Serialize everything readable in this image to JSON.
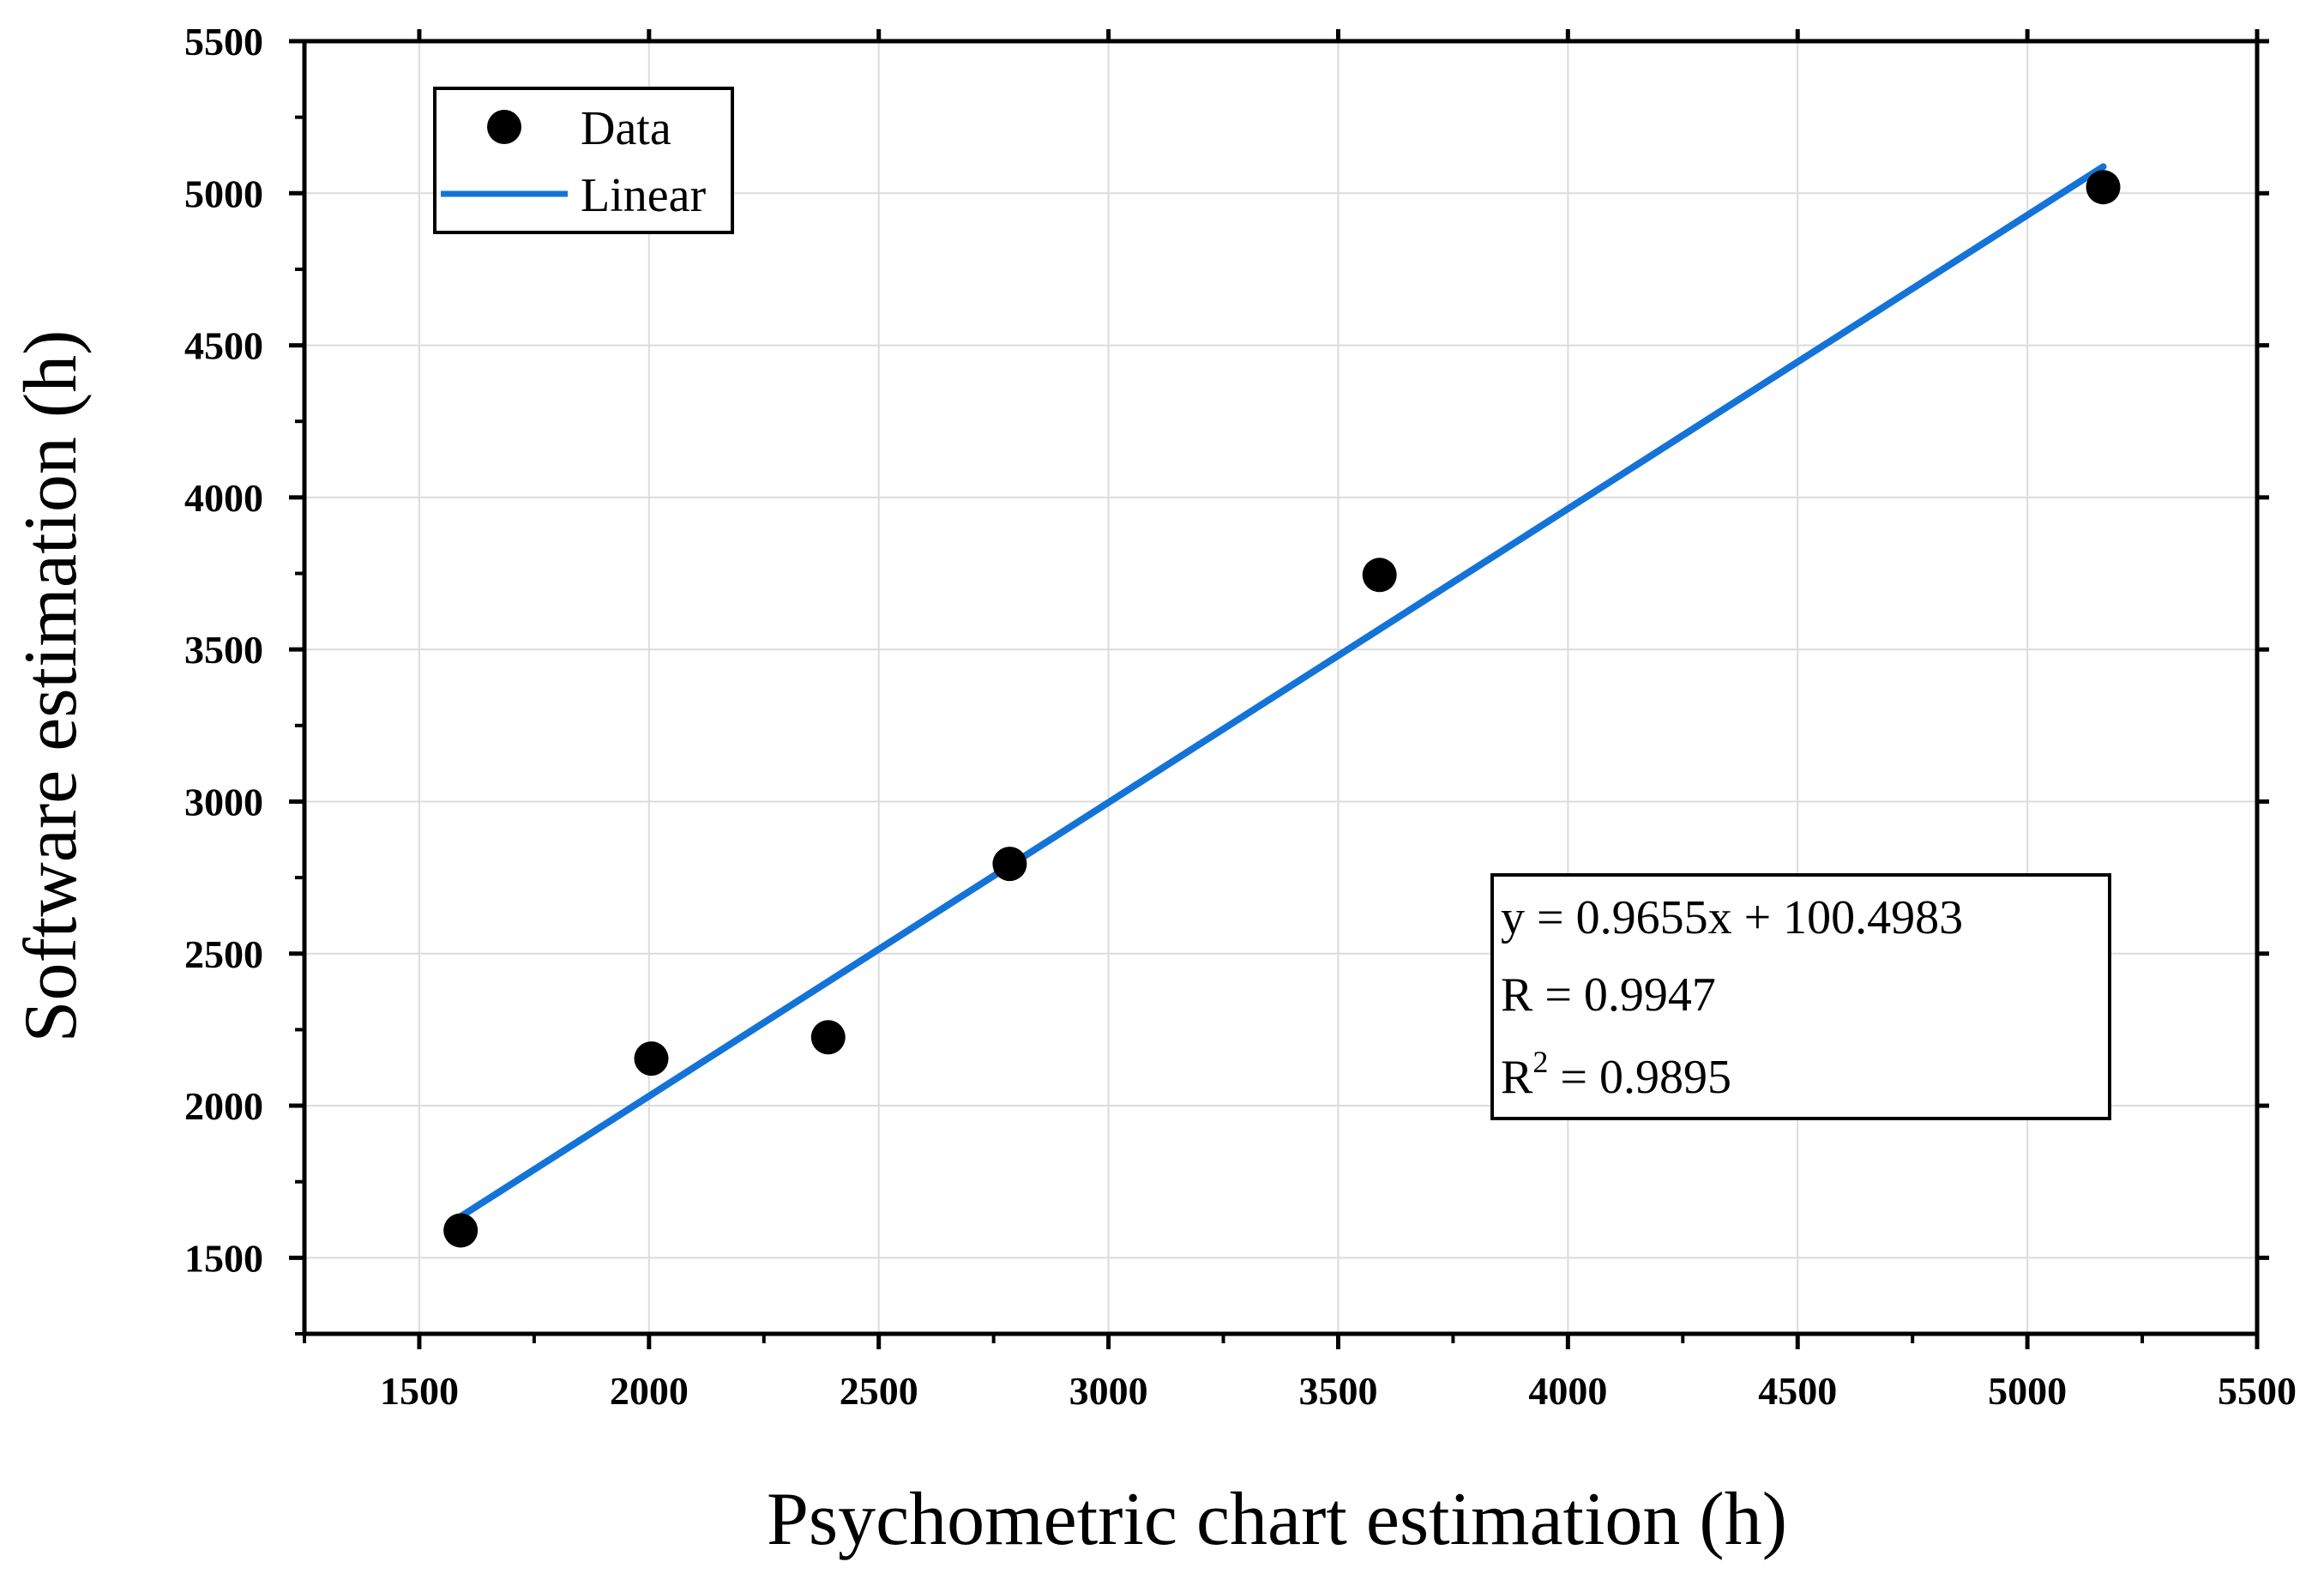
{
  "chart_data": {
    "type": "scatter",
    "title": "",
    "xlabel": "Psychometric chart estimation (h)",
    "ylabel": "Software estimation (h)",
    "xlim": [
      1250,
      5500
    ],
    "ylim": [
      1250,
      5500
    ],
    "xticks": [
      1500,
      2000,
      2500,
      3000,
      3500,
      4000,
      4500,
      5000,
      5500
    ],
    "yticks": [
      1500,
      2000,
      2500,
      3000,
      3500,
      4000,
      4500,
      5000,
      5500
    ],
    "xtick_labels": [
      "1500",
      "2000",
      "2500",
      "3000",
      "3500",
      "4000",
      "4500",
      "5000",
      "5500"
    ],
    "ytick_labels": [
      "1500",
      "2000",
      "2500",
      "3000",
      "3500",
      "4000",
      "4500",
      "5000",
      "5500"
    ],
    "grid": true,
    "series": [
      {
        "name": "Data",
        "kind": "scatter",
        "color": "#000000",
        "x": [
          1590,
          2005,
          2390,
          2785,
          3590,
          5165
        ],
        "y": [
          1590,
          2155,
          2225,
          2795,
          3745,
          5020
        ]
      },
      {
        "name": "Linear",
        "kind": "line",
        "color": "#1473d8",
        "slope": 0.9655,
        "intercept": 100.4983,
        "x_range": [
          1590,
          5165
        ]
      }
    ],
    "legend": {
      "position": "top-left",
      "entries": [
        "Data",
        "Linear"
      ]
    },
    "annotation": {
      "position": "bottom-right",
      "equation": "y = 0.9655x + 100.4983",
      "r_text": "R = 0.9947",
      "r2_prefix": "R",
      "r2_sup": "2",
      "r2_value": " = 0.9895"
    }
  }
}
